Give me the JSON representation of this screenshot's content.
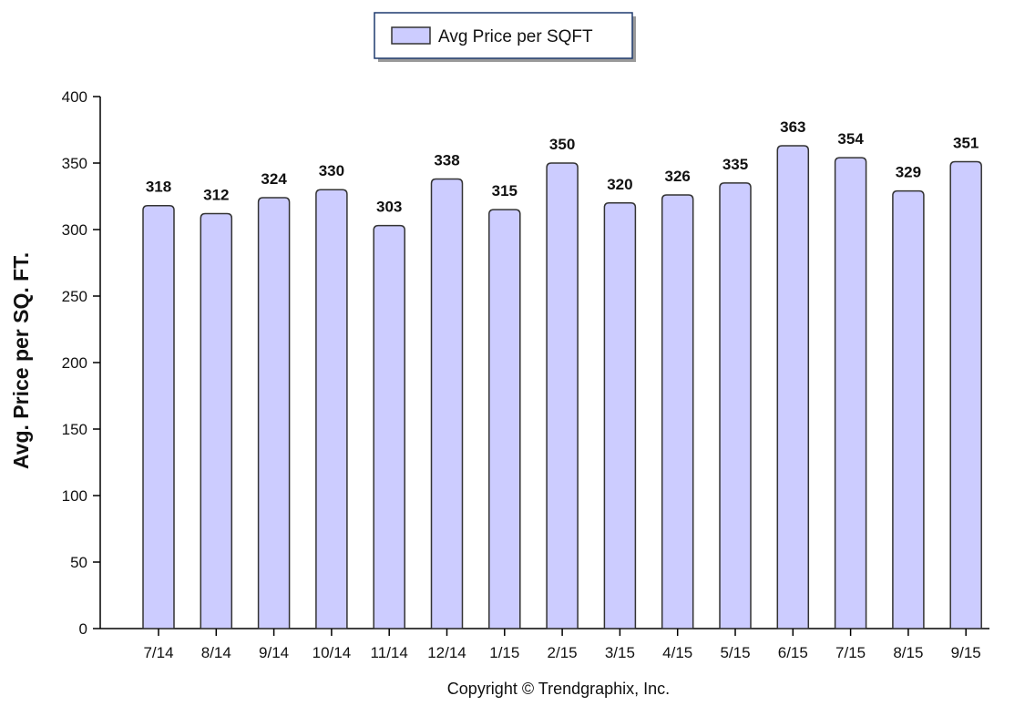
{
  "chart_data": {
    "type": "bar",
    "categories": [
      "7/14",
      "8/14",
      "9/14",
      "10/14",
      "11/14",
      "12/14",
      "1/15",
      "2/15",
      "3/15",
      "4/15",
      "5/15",
      "6/15",
      "7/15",
      "8/15",
      "9/15"
    ],
    "series": [
      {
        "name": "Avg Price per SQFT",
        "values": [
          318,
          312,
          324,
          330,
          303,
          338,
          315,
          350,
          320,
          326,
          335,
          363,
          354,
          329,
          351
        ]
      }
    ],
    "ylabel": "Avg. Price per SQ. FT.",
    "xlabel": "",
    "ylim": [
      0,
      400
    ],
    "yticks": [
      0,
      50,
      100,
      150,
      200,
      250,
      300,
      350,
      400
    ],
    "grid": false,
    "legend_position": "top-center",
    "colors": {
      "bar_fill": "#ccccff",
      "bar_stroke": "#333333",
      "axis": "#000000",
      "legend_border": "#1f3a6e"
    }
  },
  "footer": {
    "copyright": "Copyright © Trendgraphix, Inc."
  }
}
